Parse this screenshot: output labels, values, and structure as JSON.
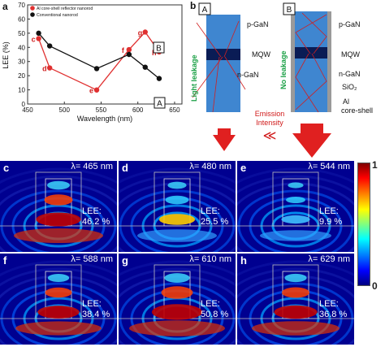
{
  "panel_a": {
    "letter": "a",
    "legend": [
      "Al core-shell reflector nanorod",
      "Conventional nanorod"
    ],
    "ylabel": "LEE (%)",
    "xlabel": "Wavelength (nm)",
    "box_labels": [
      "B",
      "A"
    ]
  },
  "chart_data": {
    "type": "line",
    "xlabel": "Wavelength (nm)",
    "ylabel": "LEE (%)",
    "xlim": [
      450,
      660
    ],
    "ylim": [
      0,
      70
    ],
    "xticks": [
      450,
      500,
      550,
      600,
      650
    ],
    "yticks": [
      0,
      10,
      20,
      30,
      40,
      50,
      60,
      70
    ],
    "legend_position": "top-left",
    "series": [
      {
        "name": "Al core-shell reflector nanorod",
        "color": "#e03030",
        "x": [
          465,
          480,
          544,
          588,
          610,
          629
        ],
        "y": [
          46.2,
          25.5,
          9.9,
          38.4,
          50.8,
          36.8
        ],
        "labels": [
          "c",
          "d",
          "e",
          "f",
          "g",
          "h"
        ]
      },
      {
        "name": "Conventional nanorod",
        "color": "#111111",
        "x": [
          465,
          480,
          544,
          588,
          610,
          629
        ],
        "y": [
          50,
          41,
          25,
          35,
          26,
          18
        ]
      }
    ]
  },
  "panel_b": {
    "letter": "b",
    "box_a": "A",
    "box_b": "B",
    "labels_a": [
      "p-GaN",
      "MQW",
      "n-GaN"
    ],
    "labels_b": [
      "p-GaN",
      "MQW",
      "n-GaN",
      "SiO₂",
      "Al",
      "core-shell"
    ],
    "light_leakage": "Light leakage",
    "no_leakage": "No leakage",
    "emission_intensity": "Emission\nIntensity",
    "compare_symbol": "≪"
  },
  "field_panels": [
    {
      "letter": "c",
      "lambda": "λ= 465 nm",
      "lee": [
        "LEE:",
        "46.2 %"
      ],
      "intensity": 0.75
    },
    {
      "letter": "d",
      "lambda": "λ= 480 nm",
      "lee": [
        "LEE:",
        "25.5 %"
      ],
      "intensity": 0.45
    },
    {
      "letter": "e",
      "lambda": "λ= 544 nm",
      "lee": [
        "LEE:",
        "9.9 %"
      ],
      "intensity": 0.2
    },
    {
      "letter": "f",
      "lambda": "λ= 588 nm",
      "lee": [
        "LEE:",
        "38.4 %"
      ],
      "intensity": 0.65
    },
    {
      "letter": "g",
      "lambda": "λ= 610 nm",
      "lee": [
        "LEE:",
        "50.8 %"
      ],
      "intensity": 0.95
    },
    {
      "letter": "h",
      "lambda": "λ= 629 nm",
      "lee": [
        "LEE:",
        "36.8 %"
      ],
      "intensity": 0.7
    }
  ],
  "colorbar": {
    "max": "1",
    "min": "0"
  }
}
